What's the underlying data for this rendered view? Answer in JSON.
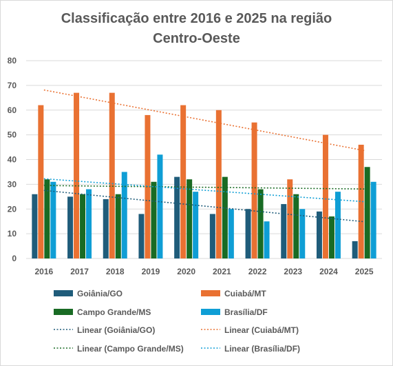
{
  "chart_data": {
    "type": "bar",
    "title_line1": "Classificação entre 2016 e 2025 na região",
    "title_line2": "Centro-Oeste",
    "xlabel": "",
    "ylabel": "",
    "ylim": [
      0,
      80
    ],
    "yticks": [
      0,
      10,
      20,
      30,
      40,
      50,
      60,
      70,
      80
    ],
    "grid": true,
    "legend_position": "bottom",
    "categories": [
      "2016",
      "2017",
      "2018",
      "2019",
      "2020",
      "2021",
      "2022",
      "2023",
      "2024",
      "2025"
    ],
    "series": [
      {
        "name": "Goiânia/GO",
        "color": "#1f5c7a",
        "values": [
          26,
          25,
          24,
          18,
          33,
          18,
          20,
          22,
          19,
          7
        ]
      },
      {
        "name": "Cuiabá/MT",
        "color": "#e97132",
        "values": [
          62,
          67,
          67,
          58,
          62,
          60,
          55,
          32,
          50,
          46
        ]
      },
      {
        "name": "Campo Grande/MS",
        "color": "#196b24",
        "values": [
          32,
          26,
          26,
          31,
          32,
          33,
          28,
          26,
          17,
          37
        ]
      },
      {
        "name": "Brasília/DF",
        "color": "#0f9ed5",
        "values": [
          31,
          28,
          35,
          42,
          27,
          20,
          15,
          20,
          27,
          31
        ]
      }
    ],
    "trendlines": [
      {
        "name": "Linear (Goiânia/GO)",
        "color": "#1f5c7a"
      },
      {
        "name": "Linear (Cuiabá/MT)",
        "color": "#e97132"
      },
      {
        "name": "Linear (Campo Grande/MS)",
        "color": "#196b24"
      },
      {
        "name": "Linear (Brasília/DF)",
        "color": "#0f9ed5"
      }
    ]
  }
}
